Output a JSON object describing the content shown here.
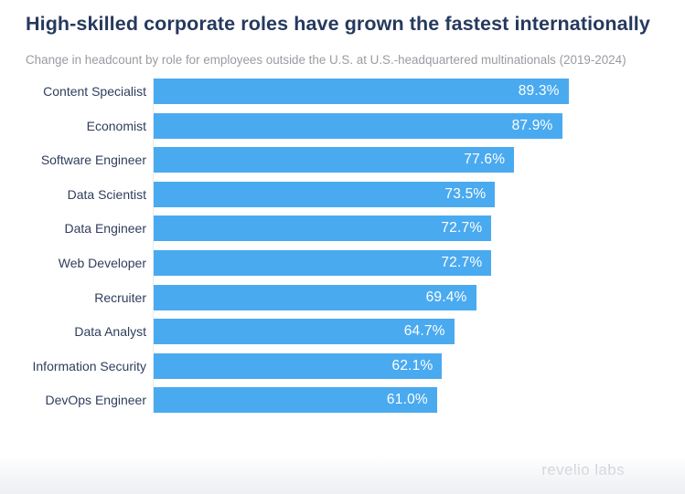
{
  "header": {
    "title": "High-skilled corporate roles have grown the fastest internationally",
    "subtitle": "Change in headcount by role for employees outside the U.S. at U.S.-headquartered multinationals (2019-2024)"
  },
  "chart_data": {
    "type": "bar",
    "orientation": "horizontal",
    "title": "High-skilled corporate roles have grown the fastest internationally",
    "subtitle": "Change in headcount by role for employees outside the U.S. at U.S.-headquartered multinationals (2019-2024)",
    "categories": [
      "Content Specialist",
      "Economist",
      "Software Engineer",
      "Data Scientist",
      "Data Engineer",
      "Web Developer",
      "Recruiter",
      "Data Analyst",
      "Information Security",
      "DevOps Engineer"
    ],
    "values": [
      89.3,
      87.9,
      77.6,
      73.5,
      72.7,
      72.7,
      69.4,
      64.7,
      62.1,
      61.0
    ],
    "value_labels": [
      "89.3%",
      "87.9%",
      "77.6%",
      "73.5%",
      "72.7%",
      "72.7%",
      "69.4%",
      "64.7%",
      "62.1%",
      "61.0%"
    ],
    "xlabel": "",
    "ylabel": "",
    "xlim": [
      0,
      100
    ],
    "grid": false,
    "legend": false,
    "value_labels_position": "inside-end",
    "bar_color": "#4aaaf0",
    "value_label_color": "#ffffff"
  },
  "footer": {
    "logo_text": "revelio labs"
  },
  "colors": {
    "accent_blue": "#4aaaf0",
    "title_navy": "#26395e",
    "label_navy": "#2f3e5c",
    "subtitle_gray": "#9a9ba1",
    "logo_gray": "#c6c9d1",
    "axis_line": "#e8eaee",
    "background": "#ffffff"
  }
}
